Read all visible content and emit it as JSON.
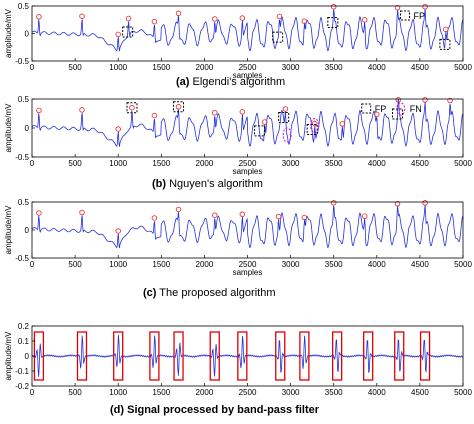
{
  "chart_data": [
    {
      "type": "line",
      "caption_label": "(a)",
      "caption_text": "Elgendi's algorithm",
      "xlabel": "samples",
      "ylabel": "amplitude/mV",
      "xlim": [
        0,
        5000
      ],
      "ylim": [
        -0.5,
        0.5
      ],
      "x_ticks": [
        "0",
        "500",
        "1000",
        "1500",
        "2000",
        "2500",
        "3000",
        "3500",
        "4000",
        "4500",
        "5000"
      ],
      "y_ticks": [
        "0.5",
        "0",
        "-0.5"
      ],
      "show_xlabel": true,
      "legend": [
        {
          "symbol": "dashed-square",
          "label": "FP"
        }
      ],
      "r_peaks": [
        80,
        580,
        1000,
        1120,
        1420,
        1700,
        2120,
        2440,
        2870,
        3160,
        3500,
        3860,
        4240,
        4560,
        4800
      ],
      "fp_marks": [
        1110,
        2850,
        3490,
        4790
      ],
      "fn_marks": [],
      "band_boxes": []
    },
    {
      "type": "line",
      "caption_label": "(b)",
      "caption_text": "Nguyen's algorithm",
      "xlabel": "samples",
      "ylabel": "amplitude/mV",
      "xlim": [
        0,
        5000
      ],
      "ylim": [
        -0.5,
        0.5
      ],
      "x_ticks": [
        "0",
        "500",
        "1000",
        "1500",
        "2000",
        "2500",
        "3000",
        "3500",
        "4000",
        "4500",
        "5000"
      ],
      "y_ticks": [
        "0.5",
        "0",
        "-0.5"
      ],
      "show_xlabel": true,
      "legend": [
        {
          "symbol": "dashed-square",
          "label": "FP"
        },
        {
          "symbol": "dashed-ellipse",
          "label": "FN"
        }
      ],
      "r_peaks": [
        80,
        580,
        1000,
        1160,
        1420,
        1700,
        2120,
        2440,
        2700,
        2940,
        3280,
        3600,
        4000,
        4250,
        4560,
        4850
      ],
      "fp_marks": [
        1160,
        1700,
        2640,
        2920,
        3250,
        4240
      ],
      "fn_marks": [
        2960,
        3280
      ],
      "band_boxes": []
    },
    {
      "type": "line",
      "caption_label": "(c)",
      "caption_text": "The proposed algorithm",
      "xlabel": "samples",
      "ylabel": "amplitude/mV",
      "xlim": [
        0,
        5000
      ],
      "ylim": [
        -0.5,
        0.5
      ],
      "x_ticks": [
        "0",
        "500",
        "1000",
        "1500",
        "2000",
        "2500",
        "3000",
        "3500",
        "4000",
        "4500",
        "5000"
      ],
      "y_ticks": [
        "0.5",
        "0",
        "-0.5"
      ],
      "show_xlabel": true,
      "legend": [],
      "r_peaks": [
        80,
        580,
        1000,
        1420,
        1700,
        2120,
        2440,
        2860,
        3160,
        3500,
        3860,
        4240,
        4560
      ],
      "fp_marks": [],
      "fn_marks": [],
      "band_boxes": []
    },
    {
      "type": "line",
      "caption_label": "(d)",
      "caption_text": "Signal processed by band-pass filter",
      "xlabel": "",
      "ylabel": "amplitude/mV",
      "xlim": [
        0,
        5000
      ],
      "ylim": [
        -0.2,
        0.2
      ],
      "x_ticks": [
        "0",
        "500",
        "1000",
        "1500",
        "2000",
        "2500",
        "3000",
        "3500",
        "4000",
        "4500",
        "5000"
      ],
      "y_ticks": [
        "0.2",
        "0.1",
        "0",
        "-0.1",
        "-0.2"
      ],
      "show_xlabel": false,
      "legend": [],
      "r_peaks": [],
      "fp_marks": [],
      "fn_marks": [],
      "band_boxes": [
        80,
        580,
        1000,
        1420,
        1700,
        2120,
        2440,
        2880,
        3160,
        3540,
        3900,
        4260,
        4560
      ]
    }
  ],
  "colors": {
    "signal": "#2432d8",
    "peak": "#e83a3a",
    "fp": "#000000",
    "fn": "#e000e0",
    "band_box": "#e00000"
  }
}
